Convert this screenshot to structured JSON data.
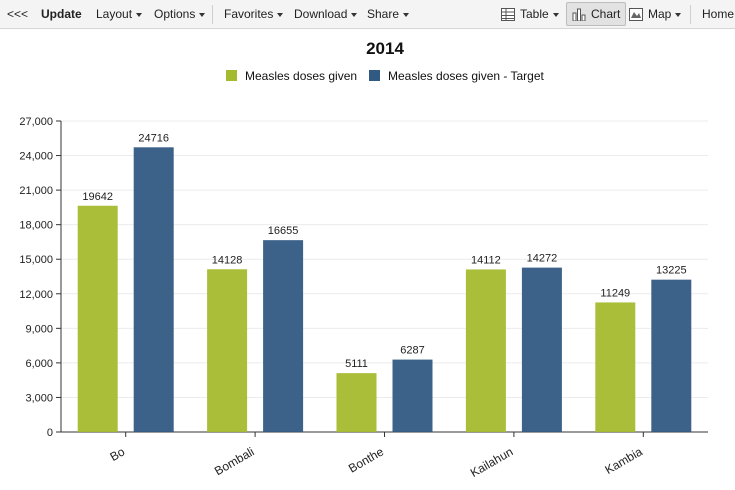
{
  "toolbar": {
    "back": "<<<",
    "update": "Update",
    "layout": "Layout",
    "options": "Options",
    "favorites": "Favorites",
    "download": "Download",
    "share": "Share",
    "table": "Table",
    "chart": "Chart",
    "map": "Map",
    "home": "Home"
  },
  "colors": {
    "series1": "#a5bb2f",
    "series2": "#315a83"
  },
  "chart_data": {
    "type": "bar",
    "title": "2014",
    "categories": [
      "Bo",
      "Bombali",
      "Bonthe",
      "Kailahun",
      "Kambia"
    ],
    "series": [
      {
        "name": "Measles doses given",
        "values": [
          19642,
          14128,
          5111,
          14112,
          11249
        ]
      },
      {
        "name": "Measles doses given - Target",
        "values": [
          24716,
          16655,
          6287,
          14272,
          13225
        ]
      }
    ],
    "ylim": [
      0,
      27000
    ],
    "yticks": [
      "0",
      "3,000",
      "6,000",
      "9,000",
      "12,000",
      "15,000",
      "18,000",
      "21,000",
      "24,000",
      "27,000"
    ],
    "legend": "top-center",
    "grid": true
  }
}
